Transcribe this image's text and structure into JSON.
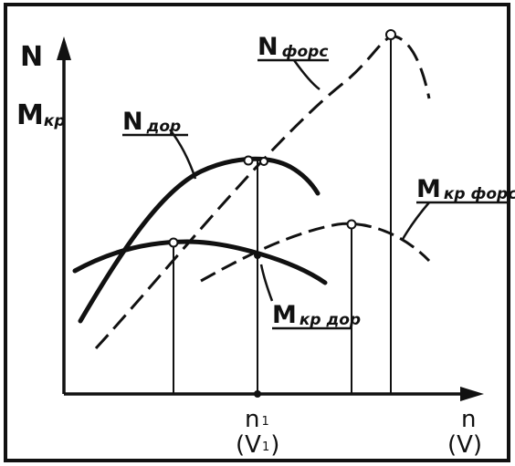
{
  "labels": {
    "y_axis_line1": "N",
    "y_axis_line2": "M",
    "y_axis_line2_sub": "кр",
    "n_dor": "N",
    "n_dor_sub": "дор",
    "n_fors": "N",
    "n_fors_sub": "форс",
    "m_fors": "M",
    "m_fors_sub": "кр форс",
    "m_dor": "M",
    "m_dor_sub": "кр дор",
    "x_mark": "n",
    "x_mark_sub": "1",
    "x_mark_paren": "(V",
    "x_mark_paren_sub": "1",
    "x_mark_paren_close": ")",
    "x_axis_line1": "n",
    "x_axis_line2": "(V)"
  },
  "colors": {
    "ink": "#111111",
    "background": "#ffffff"
  }
}
